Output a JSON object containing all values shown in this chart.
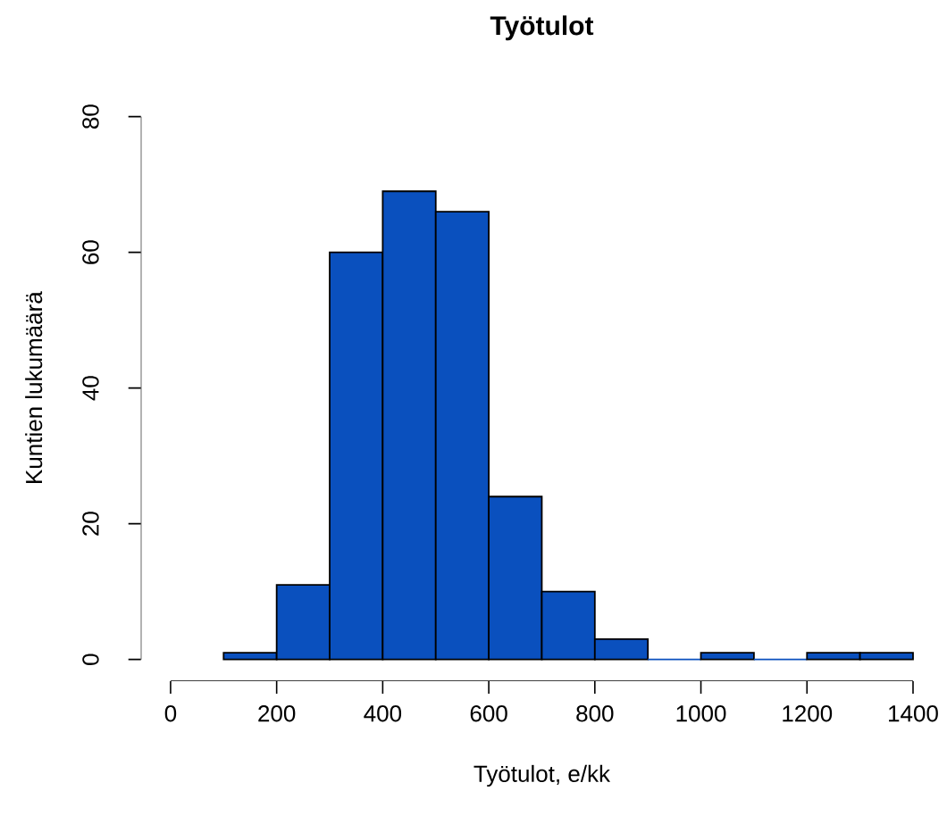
{
  "chart_data": {
    "type": "histogram",
    "title": "Työtulot",
    "xlabel": "Työtulot, e/kk",
    "ylabel": "Kuntien lukumäärä",
    "bins": [
      100,
      200,
      300,
      400,
      500,
      600,
      700,
      800,
      900,
      1000,
      1100,
      1200,
      1300,
      1400
    ],
    "values": [
      1,
      11,
      60,
      69,
      66,
      24,
      10,
      3,
      0,
      1,
      0,
      1,
      1
    ],
    "color": "#0a50be",
    "xlim": [
      0,
      1400
    ],
    "ylim": [
      0,
      80
    ],
    "xticks": [
      0,
      200,
      400,
      600,
      800,
      1000,
      1200,
      1400
    ],
    "yticks": [
      0,
      20,
      40,
      60,
      80
    ]
  }
}
